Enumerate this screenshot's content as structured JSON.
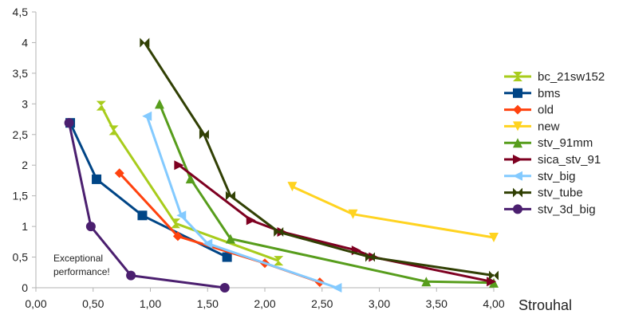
{
  "chart_data": {
    "type": "line",
    "title": "",
    "xlabel": "Strouhal",
    "ylabel": "",
    "xlim": [
      0,
      4
    ],
    "ylim": [
      0,
      4.5
    ],
    "x_ticks": [
      "0,00",
      "0,50",
      "1,00",
      "1,50",
      "2,00",
      "2,50",
      "3,00",
      "3,50",
      "4,00"
    ],
    "y_ticks": [
      "0",
      "0,5",
      "1",
      "1,5",
      "2",
      "2,5",
      "3",
      "3,5",
      "4",
      "4,5"
    ],
    "grid": false,
    "legend_position": "right",
    "annotation": [
      "Exceptional",
      "performance!"
    ],
    "series": [
      {
        "name": "bc_21sw152",
        "color": "#a8cc1c",
        "marker": "hourglass",
        "x": [
          0.57,
          0.68,
          1.22,
          2.12
        ],
        "y": [
          2.97,
          2.57,
          1.05,
          0.44
        ]
      },
      {
        "name": "bms",
        "color": "#004586",
        "marker": "square",
        "x": [
          0.3,
          0.53,
          0.93,
          1.67
        ],
        "y": [
          2.69,
          1.77,
          1.18,
          0.5
        ]
      },
      {
        "name": "old",
        "color": "#ff420e",
        "marker": "diamond",
        "x": [
          0.73,
          1.24,
          2.0,
          2.48
        ],
        "y": [
          1.87,
          0.84,
          0.4,
          0.09
        ]
      },
      {
        "name": "new",
        "color": "#ffd320",
        "marker": "triangle-down",
        "x": [
          2.24,
          2.77,
          4.0
        ],
        "y": [
          1.65,
          1.2,
          0.82
        ]
      },
      {
        "name": "stv_91mm",
        "color": "#579d1c",
        "marker": "triangle-up",
        "x": [
          1.08,
          1.35,
          1.7,
          3.41,
          4.0
        ],
        "y": [
          3.0,
          1.78,
          0.8,
          0.1,
          0.08
        ]
      },
      {
        "name": "sica_stv_91",
        "color": "#7e0021",
        "marker": "triangle-right",
        "x": [
          1.25,
          1.88,
          2.15,
          2.8,
          2.95,
          3.98
        ],
        "y": [
          2.0,
          1.1,
          0.91,
          0.61,
          0.5,
          0.1
        ]
      },
      {
        "name": "stv_big",
        "color": "#83caff",
        "marker": "triangle-left",
        "x": [
          0.97,
          1.27,
          1.5,
          2.63
        ],
        "y": [
          2.8,
          1.18,
          0.72,
          0.0
        ]
      },
      {
        "name": "stv_tube",
        "color": "#314004",
        "marker": "bowtie",
        "x": [
          0.95,
          1.47,
          1.7,
          2.12,
          2.92,
          4.0
        ],
        "y": [
          4.0,
          2.5,
          1.5,
          0.91,
          0.5,
          0.2
        ]
      },
      {
        "name": "stv_3d_big",
        "color": "#4b1f6f",
        "marker": "circle",
        "x": [
          0.29,
          0.48,
          0.83,
          1.65
        ],
        "y": [
          2.69,
          1.0,
          0.2,
          0.0
        ]
      }
    ]
  }
}
